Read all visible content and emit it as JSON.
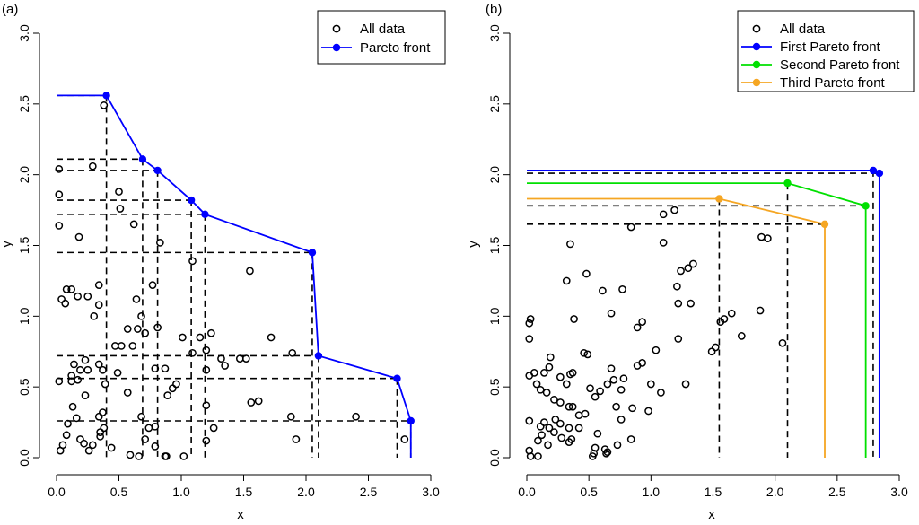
{
  "chart_data": [
    {
      "type": "scatter",
      "panel_label": "(a)",
      "xlabel": "x",
      "ylabel": "y",
      "xlim": [
        0,
        3.0
      ],
      "ylim": [
        0,
        3.0
      ],
      "x_ticks": [
        "0.0",
        "0.5",
        "1.0",
        "1.5",
        "2.0",
        "2.5",
        "3.0"
      ],
      "y_ticks": [
        "0.0",
        "0.5",
        "1.0",
        "1.5",
        "2.0",
        "2.5",
        "3.0"
      ],
      "legend_position": "top-right",
      "legend": [
        {
          "label": "All data",
          "kind": "circle",
          "color": "#000000"
        },
        {
          "label": "Pareto front",
          "kind": "line-point",
          "color": "#0000ff"
        }
      ],
      "all_data": [
        [
          0.38,
          2.49
        ],
        [
          0.02,
          2.04
        ],
        [
          0.29,
          2.06
        ],
        [
          0.02,
          1.86
        ],
        [
          0.5,
          1.88
        ],
        [
          0.51,
          1.76
        ],
        [
          0.18,
          1.56
        ],
        [
          0.02,
          1.64
        ],
        [
          0.62,
          1.65
        ],
        [
          0.83,
          1.52
        ],
        [
          1.09,
          1.39
        ],
        [
          1.55,
          1.32
        ],
        [
          0.77,
          1.22
        ],
        [
          0.08,
          1.19
        ],
        [
          0.12,
          1.19
        ],
        [
          0.34,
          1.22
        ],
        [
          0.04,
          1.12
        ],
        [
          0.07,
          1.09
        ],
        [
          0.17,
          1.14
        ],
        [
          0.25,
          1.14
        ],
        [
          0.34,
          1.08
        ],
        [
          0.3,
          1.0
        ],
        [
          0.64,
          1.12
        ],
        [
          0.68,
          1.0
        ],
        [
          0.57,
          0.91
        ],
        [
          0.65,
          0.91
        ],
        [
          0.71,
          0.88
        ],
        [
          0.81,
          0.92
        ],
        [
          1.15,
          0.85
        ],
        [
          1.24,
          0.88
        ],
        [
          1.01,
          0.85
        ],
        [
          1.72,
          0.85
        ],
        [
          0.47,
          0.79
        ],
        [
          0.52,
          0.79
        ],
        [
          0.61,
          0.79
        ],
        [
          1.09,
          0.74
        ],
        [
          1.2,
          0.76
        ],
        [
          1.32,
          0.7
        ],
        [
          1.47,
          0.7
        ],
        [
          1.52,
          0.7
        ],
        [
          1.35,
          0.65
        ],
        [
          1.89,
          0.74
        ],
        [
          0.14,
          0.66
        ],
        [
          0.19,
          0.62
        ],
        [
          0.25,
          0.62
        ],
        [
          0.34,
          0.66
        ],
        [
          0.37,
          0.62
        ],
        [
          0.49,
          0.6
        ],
        [
          0.79,
          0.63
        ],
        [
          0.87,
          0.63
        ],
        [
          0.23,
          0.69
        ],
        [
          0.12,
          0.58
        ],
        [
          0.02,
          0.54
        ],
        [
          0.12,
          0.54
        ],
        [
          0.17,
          0.55
        ],
        [
          0.39,
          0.52
        ],
        [
          0.23,
          0.44
        ],
        [
          0.57,
          0.46
        ],
        [
          0.93,
          0.49
        ],
        [
          0.96,
          0.52
        ],
        [
          1.2,
          0.62
        ],
        [
          0.89,
          0.44
        ],
        [
          1.2,
          0.37
        ],
        [
          1.56,
          0.39
        ],
        [
          1.62,
          0.4
        ],
        [
          0.37,
          0.32
        ],
        [
          0.34,
          0.29
        ],
        [
          0.68,
          0.29
        ],
        [
          0.74,
          0.21
        ],
        [
          0.79,
          0.22
        ],
        [
          0.13,
          0.36
        ],
        [
          0.16,
          0.28
        ],
        [
          0.09,
          0.24
        ],
        [
          0.19,
          0.13
        ],
        [
          0.35,
          0.15
        ],
        [
          0.38,
          0.21
        ],
        [
          1.26,
          0.21
        ],
        [
          1.88,
          0.29
        ],
        [
          1.92,
          0.13
        ],
        [
          2.4,
          0.29
        ],
        [
          2.79,
          0.13
        ],
        [
          0.05,
          0.09
        ],
        [
          0.03,
          0.05
        ],
        [
          0.08,
          0.16
        ],
        [
          0.22,
          0.1
        ],
        [
          0.29,
          0.09
        ],
        [
          0.35,
          0.18
        ],
        [
          0.26,
          0.05
        ],
        [
          0.44,
          0.07
        ],
        [
          0.59,
          0.02
        ],
        [
          0.66,
          0.01
        ],
        [
          0.71,
          0.13
        ],
        [
          0.79,
          0.08
        ],
        [
          0.87,
          0.01
        ],
        [
          0.88,
          0.01
        ],
        [
          1.02,
          0.01
        ],
        [
          1.2,
          0.12
        ]
      ],
      "pareto_front": [
        [
          0.4,
          2.56
        ],
        [
          0.69,
          2.11
        ],
        [
          0.81,
          2.03
        ],
        [
          1.08,
          1.82
        ],
        [
          1.19,
          1.72
        ],
        [
          2.05,
          1.45
        ],
        [
          2.1,
          0.72
        ],
        [
          2.73,
          0.56
        ],
        [
          2.84,
          0.26
        ]
      ],
      "pareto_line_start": [
        0.0,
        2.56
      ],
      "pareto_line_end": [
        2.84,
        0.0
      ]
    },
    {
      "type": "scatter",
      "panel_label": "(b)",
      "xlabel": "x",
      "ylabel": "y",
      "xlim": [
        0,
        3.0
      ],
      "ylim": [
        0,
        3.0
      ],
      "x_ticks": [
        "0.0",
        "0.5",
        "1.0",
        "1.5",
        "2.0",
        "2.5",
        "3.0"
      ],
      "y_ticks": [
        "0.0",
        "0.5",
        "1.0",
        "1.5",
        "2.0",
        "2.5",
        "3.0"
      ],
      "legend_position": "top-right",
      "legend": [
        {
          "label": "All data",
          "kind": "circle",
          "color": "#000000"
        },
        {
          "label": "First Pareto front",
          "kind": "line-point",
          "color": "#0000ff"
        },
        {
          "label": "Second Pareto front",
          "kind": "line-point",
          "color": "#00e000"
        },
        {
          "label": "Third Pareto front",
          "kind": "line-point",
          "color": "#f5a623"
        }
      ],
      "all_data": [
        [
          0.02,
          0.95
        ],
        [
          0.03,
          0.98
        ],
        [
          0.02,
          0.84
        ],
        [
          0.35,
          1.51
        ],
        [
          0.48,
          1.3
        ],
        [
          0.61,
          1.18
        ],
        [
          0.77,
          1.19
        ],
        [
          0.84,
          1.63
        ],
        [
          1.1,
          1.72
        ],
        [
          1.19,
          1.75
        ],
        [
          1.1,
          1.52
        ],
        [
          1.21,
          1.21
        ],
        [
          1.24,
          1.32
        ],
        [
          1.3,
          1.34
        ],
        [
          1.34,
          1.37
        ],
        [
          1.22,
          1.09
        ],
        [
          1.32,
          1.09
        ],
        [
          0.32,
          1.25
        ],
        [
          0.68,
          1.02
        ],
        [
          0.89,
          0.92
        ],
        [
          0.93,
          0.96
        ],
        [
          1.65,
          1.02
        ],
        [
          1.59,
          0.98
        ],
        [
          1.56,
          0.96
        ],
        [
          1.89,
          1.56
        ],
        [
          1.94,
          1.55
        ],
        [
          1.88,
          1.04
        ],
        [
          1.22,
          0.84
        ],
        [
          1.73,
          0.86
        ],
        [
          2.06,
          0.81
        ],
        [
          1.49,
          0.75
        ],
        [
          1.52,
          0.78
        ],
        [
          1.04,
          0.76
        ],
        [
          0.49,
          0.73
        ],
        [
          0.38,
          0.98
        ],
        [
          0.02,
          0.58
        ],
        [
          0.06,
          0.6
        ],
        [
          0.14,
          0.6
        ],
        [
          0.19,
          0.71
        ],
        [
          0.18,
          0.64
        ],
        [
          0.27,
          0.57
        ],
        [
          0.32,
          0.52
        ],
        [
          0.35,
          0.59
        ],
        [
          0.37,
          0.6
        ],
        [
          0.46,
          0.74
        ],
        [
          0.68,
          0.63
        ],
        [
          0.78,
          0.56
        ],
        [
          0.89,
          0.65
        ],
        [
          0.93,
          0.67
        ],
        [
          1.0,
          0.52
        ],
        [
          1.08,
          0.46
        ],
        [
          1.28,
          0.52
        ],
        [
          0.08,
          0.52
        ],
        [
          0.11,
          0.48
        ],
        [
          0.16,
          0.46
        ],
        [
          0.22,
          0.41
        ],
        [
          0.27,
          0.39
        ],
        [
          0.34,
          0.36
        ],
        [
          0.37,
          0.36
        ],
        [
          0.51,
          0.49
        ],
        [
          0.55,
          0.43
        ],
        [
          0.59,
          0.47
        ],
        [
          0.65,
          0.52
        ],
        [
          0.7,
          0.55
        ],
        [
          0.76,
          0.48
        ],
        [
          0.42,
          0.3
        ],
        [
          0.47,
          0.31
        ],
        [
          0.23,
          0.27
        ],
        [
          0.14,
          0.25
        ],
        [
          0.18,
          0.21
        ],
        [
          0.22,
          0.18
        ],
        [
          0.27,
          0.24
        ],
        [
          0.34,
          0.21
        ],
        [
          0.42,
          0.21
        ],
        [
          0.72,
          0.36
        ],
        [
          0.76,
          0.27
        ],
        [
          0.85,
          0.35
        ],
        [
          0.98,
          0.33
        ],
        [
          0.02,
          0.26
        ],
        [
          0.12,
          0.16
        ],
        [
          0.09,
          0.12
        ],
        [
          0.17,
          0.09
        ],
        [
          0.11,
          0.22
        ],
        [
          0.28,
          0.14
        ],
        [
          0.34,
          0.11
        ],
        [
          0.36,
          0.13
        ],
        [
          0.54,
          0.03
        ],
        [
          0.55,
          0.07
        ],
        [
          0.57,
          0.17
        ],
        [
          0.63,
          0.06
        ],
        [
          0.64,
          0.03
        ],
        [
          0.65,
          0.04
        ],
        [
          0.73,
          0.09
        ],
        [
          0.84,
          0.13
        ],
        [
          0.02,
          0.05
        ],
        [
          0.03,
          0.01
        ],
        [
          0.09,
          0.01
        ],
        [
          0.53,
          0.01
        ]
      ],
      "fronts": [
        {
          "name": "First Pareto front",
          "color": "#0000ff",
          "points": [
            [
              2.79,
              2.03
            ],
            [
              2.84,
              2.01
            ]
          ],
          "line_start": [
            0.0,
            2.03
          ],
          "line_end": [
            2.84,
            0.0
          ]
        },
        {
          "name": "Second Pareto front",
          "color": "#00e000",
          "points": [
            [
              2.1,
              1.94
            ],
            [
              2.73,
              1.78
            ]
          ],
          "line_start": [
            0.0,
            1.94
          ],
          "line_end": [
            2.73,
            0.0
          ]
        },
        {
          "name": "Third Pareto front",
          "color": "#f5a623",
          "points": [
            [
              1.55,
              1.83
            ],
            [
              2.4,
              1.65
            ]
          ],
          "line_start": [
            0.0,
            1.83
          ],
          "line_end": [
            2.4,
            0.0
          ]
        }
      ],
      "guides": [
        {
          "type": "h",
          "y": 2.01,
          "to_x": 2.84
        },
        {
          "type": "h",
          "y": 1.78,
          "to_x": 2.73
        },
        {
          "type": "h",
          "y": 1.65,
          "to_x": 2.4
        },
        {
          "type": "v",
          "x": 1.55,
          "from_y": 1.83
        },
        {
          "type": "v",
          "x": 2.1,
          "from_y": 1.94
        },
        {
          "type": "v",
          "x": 2.79,
          "from_y": 2.03
        }
      ]
    }
  ]
}
